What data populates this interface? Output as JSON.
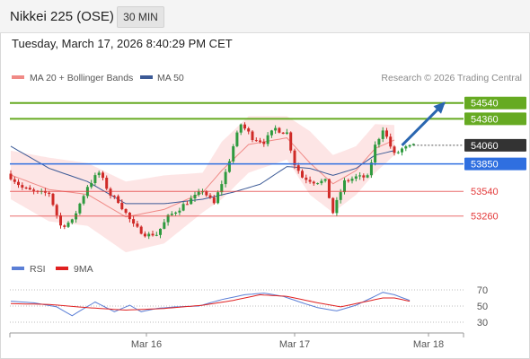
{
  "header": {
    "title": "Nikkei 225 (OSE)",
    "timeframe": "30 MIN",
    "timestamp": "Tuesday, March 17, 2026 8:40:29 PM CET"
  },
  "legend": {
    "bollinger_label": "MA 20 + Bollinger Bands",
    "ma50_label": "MA 50",
    "credit": "Research © 2026 Trading Central"
  },
  "colors": {
    "bull_candle": "#2e9a3e",
    "bear_candle": "#cf2a27",
    "bollinger": "#f08a86",
    "bollinger_fill": "#fde1e0",
    "ma50": "#3c5a96",
    "resistance": "#66aa22",
    "support": "#e33a3a",
    "pivot": "#2f6fe0",
    "last_price": "#333333",
    "arrow": "#2a66b0",
    "rsi": "#5b7fd6",
    "rsi_ma": "#e02020"
  },
  "chart_data": [
    {
      "type": "candlestick",
      "y_range": [
        52780,
        54750
      ],
      "levels": [
        {
          "value": 54540,
          "label": "54540",
          "role": "resistance"
        },
        {
          "value": 54360,
          "label": "54360",
          "role": "resistance"
        },
        {
          "value": 54060,
          "label": "54060",
          "role": "last"
        },
        {
          "value": 53850,
          "label": "53850",
          "role": "pivot"
        },
        {
          "value": 53540,
          "label": "53540",
          "role": "support"
        },
        {
          "value": 53260,
          "label": "53260",
          "role": "support"
        }
      ],
      "x_labels": [
        "Mar 16",
        "Mar 17",
        "Mar 18"
      ],
      "anchors": [
        [
          0,
          53700,
          30
        ],
        [
          3,
          53580,
          30
        ],
        [
          7,
          53520,
          30
        ],
        [
          10,
          53520,
          40
        ],
        [
          13,
          53150,
          45
        ],
        [
          16,
          53200,
          35
        ],
        [
          20,
          53600,
          40
        ],
        [
          23,
          53750,
          40
        ],
        [
          26,
          53500,
          35
        ],
        [
          28,
          53430,
          30
        ],
        [
          32,
          53150,
          40
        ],
        [
          35,
          53050,
          25
        ],
        [
          38,
          53050,
          20
        ],
        [
          41,
          53250,
          35
        ],
        [
          44,
          53350,
          40
        ],
        [
          47,
          53450,
          30
        ],
        [
          50,
          53550,
          25
        ],
        [
          53,
          53400,
          35
        ],
        [
          56,
          53750,
          40
        ],
        [
          58,
          54050,
          45
        ],
        [
          60,
          54300,
          40
        ],
        [
          63,
          54150,
          40
        ],
        [
          66,
          54100,
          35
        ],
        [
          69,
          54250,
          40
        ],
        [
          72,
          54200,
          40
        ],
        [
          74,
          53850,
          40
        ],
        [
          76,
          53700,
          30
        ],
        [
          79,
          53650,
          35
        ],
        [
          82,
          53650,
          35
        ],
        [
          84,
          53300,
          40
        ],
        [
          87,
          53650,
          30
        ],
        [
          90,
          53700,
          35
        ],
        [
          93,
          53700,
          30
        ],
        [
          95,
          54050,
          45
        ],
        [
          97,
          54250,
          35
        ],
        [
          100,
          53950,
          40
        ],
        [
          102,
          54020,
          30
        ],
        [
          105,
          54060,
          25
        ]
      ],
      "bollinger_upper": [
        [
          0,
          54000
        ],
        [
          10,
          53920
        ],
        [
          20,
          53860
        ],
        [
          30,
          53650
        ],
        [
          40,
          53720
        ],
        [
          50,
          53750
        ],
        [
          55,
          54100
        ],
        [
          62,
          54390
        ],
        [
          72,
          54390
        ],
        [
          78,
          54220
        ],
        [
          84,
          53950
        ],
        [
          90,
          54050
        ],
        [
          95,
          54300
        ],
        [
          100,
          54290
        ]
      ],
      "bollinger_lower": [
        [
          0,
          53450
        ],
        [
          10,
          53200
        ],
        [
          20,
          53150
        ],
        [
          30,
          52850
        ],
        [
          40,
          52950
        ],
        [
          50,
          53300
        ],
        [
          55,
          53450
        ],
        [
          62,
          53750
        ],
        [
          72,
          53900
        ],
        [
          78,
          53500
        ],
        [
          84,
          53300
        ],
        [
          90,
          53500
        ],
        [
          95,
          53750
        ],
        [
          100,
          53950
        ]
      ],
      "ma50": [
        [
          0,
          54050
        ],
        [
          10,
          53800
        ],
        [
          20,
          53650
        ],
        [
          30,
          53400
        ],
        [
          40,
          53400
        ],
        [
          50,
          53450
        ],
        [
          58,
          53530
        ],
        [
          65,
          53620
        ],
        [
          72,
          53820
        ],
        [
          78,
          53800
        ],
        [
          84,
          53720
        ],
        [
          90,
          53800
        ],
        [
          95,
          53950
        ],
        [
          100,
          54000
        ]
      ],
      "projection": {
        "from": [
          102,
          54060
        ],
        "to": [
          113,
          54540
        ]
      }
    },
    {
      "type": "line",
      "series": [
        {
          "name": "RSI"
        },
        {
          "name": "9MA"
        }
      ],
      "y_range": [
        20,
        80
      ],
      "y_ticks": [
        70,
        50,
        30
      ],
      "rsi": [
        [
          0,
          56
        ],
        [
          6,
          54
        ],
        [
          12,
          49
        ],
        [
          16,
          38
        ],
        [
          18,
          44
        ],
        [
          22,
          55
        ],
        [
          27,
          43
        ],
        [
          31,
          51
        ],
        [
          34,
          43
        ],
        [
          38,
          47
        ],
        [
          43,
          49
        ],
        [
          49,
          50
        ],
        [
          55,
          58
        ],
        [
          61,
          64
        ],
        [
          66,
          66
        ],
        [
          71,
          62
        ],
        [
          76,
          54
        ],
        [
          80,
          48
        ],
        [
          85,
          44
        ],
        [
          90,
          51
        ],
        [
          94,
          60
        ],
        [
          97,
          67
        ],
        [
          100,
          64
        ],
        [
          104,
          57
        ]
      ],
      "rsi_ma": [
        [
          0,
          53
        ],
        [
          10,
          52
        ],
        [
          20,
          48
        ],
        [
          30,
          45
        ],
        [
          40,
          47
        ],
        [
          50,
          51
        ],
        [
          58,
          57
        ],
        [
          65,
          64
        ],
        [
          72,
          62
        ],
        [
          80,
          54
        ],
        [
          86,
          49
        ],
        [
          92,
          55
        ],
        [
          97,
          60
        ],
        [
          100,
          60
        ],
        [
          104,
          56
        ]
      ]
    }
  ]
}
